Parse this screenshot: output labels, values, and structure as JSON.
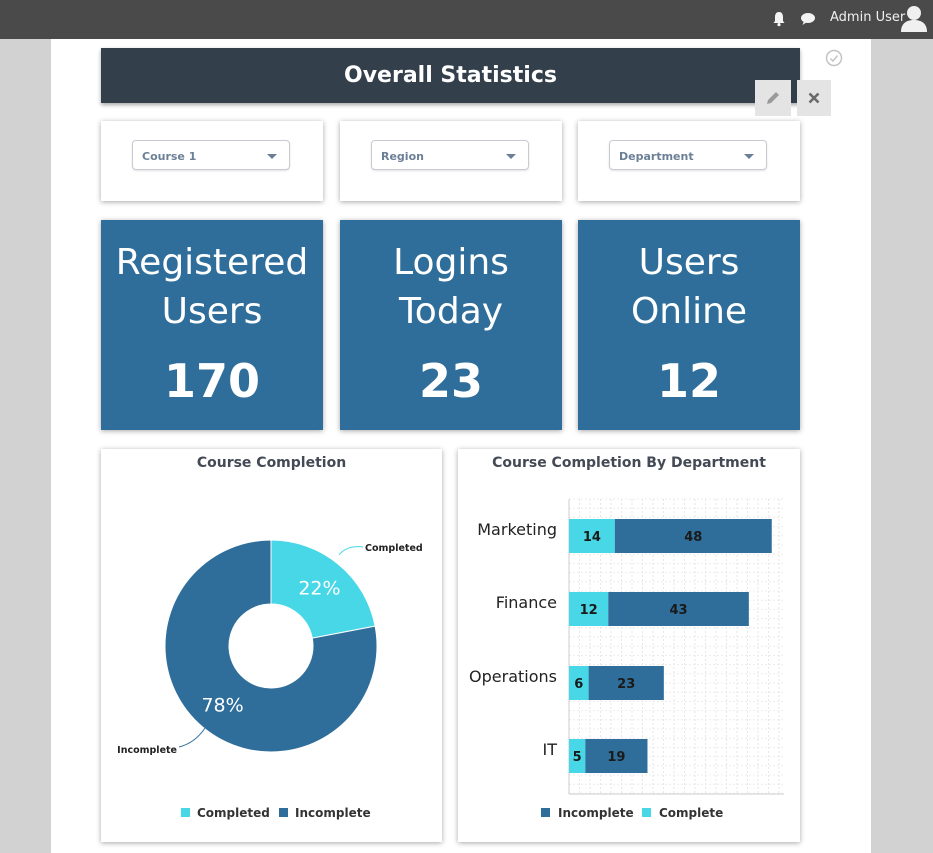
{
  "header": {
    "user_name": "Admin User",
    "icons": [
      "bell-icon",
      "chat-icon",
      "user-avatar-icon"
    ]
  },
  "page": {
    "title": "Overall Statistics",
    "icons": [
      "check-circle-icon",
      "pencil-icon",
      "close-icon"
    ]
  },
  "filters": {
    "course": "Course 1",
    "region": "Region",
    "department": "Department"
  },
  "stats": [
    {
      "label": "Registered\nUsers",
      "value": "170"
    },
    {
      "label": "Logins\nToday",
      "value": "23"
    },
    {
      "label": "Users\nOnline",
      "value": "12"
    }
  ],
  "colors": {
    "completed": "#47d7e6",
    "incomplete": "#2f6e9a",
    "title_bar": "#333f4b"
  },
  "chart_data": [
    {
      "type": "pie",
      "title": "Course Completion",
      "categories": [
        "Completed",
        "Incomplete"
      ],
      "values": [
        22,
        78
      ],
      "labels": [
        "22%",
        "78%"
      ],
      "colors": [
        "#47d7e6",
        "#2f6e9a"
      ],
      "legend": {
        "position": "bottom",
        "entries": [
          "Completed",
          "Incomplete"
        ]
      }
    },
    {
      "type": "bar",
      "orientation": "horizontal",
      "stacked": true,
      "title": "Course Completion By Department",
      "categories": [
        "Marketing",
        "Finance",
        "Operations",
        "IT"
      ],
      "series": [
        {
          "name": "Complete",
          "values": [
            14,
            12,
            6,
            5
          ],
          "color": "#47d7e6"
        },
        {
          "name": "Incomplete",
          "values": [
            48,
            43,
            23,
            19
          ],
          "color": "#2f6e9a"
        }
      ],
      "xlim": [
        0,
        65
      ],
      "grid": true,
      "legend": {
        "position": "bottom",
        "entries": [
          "Incomplete",
          "Complete"
        ]
      }
    }
  ]
}
